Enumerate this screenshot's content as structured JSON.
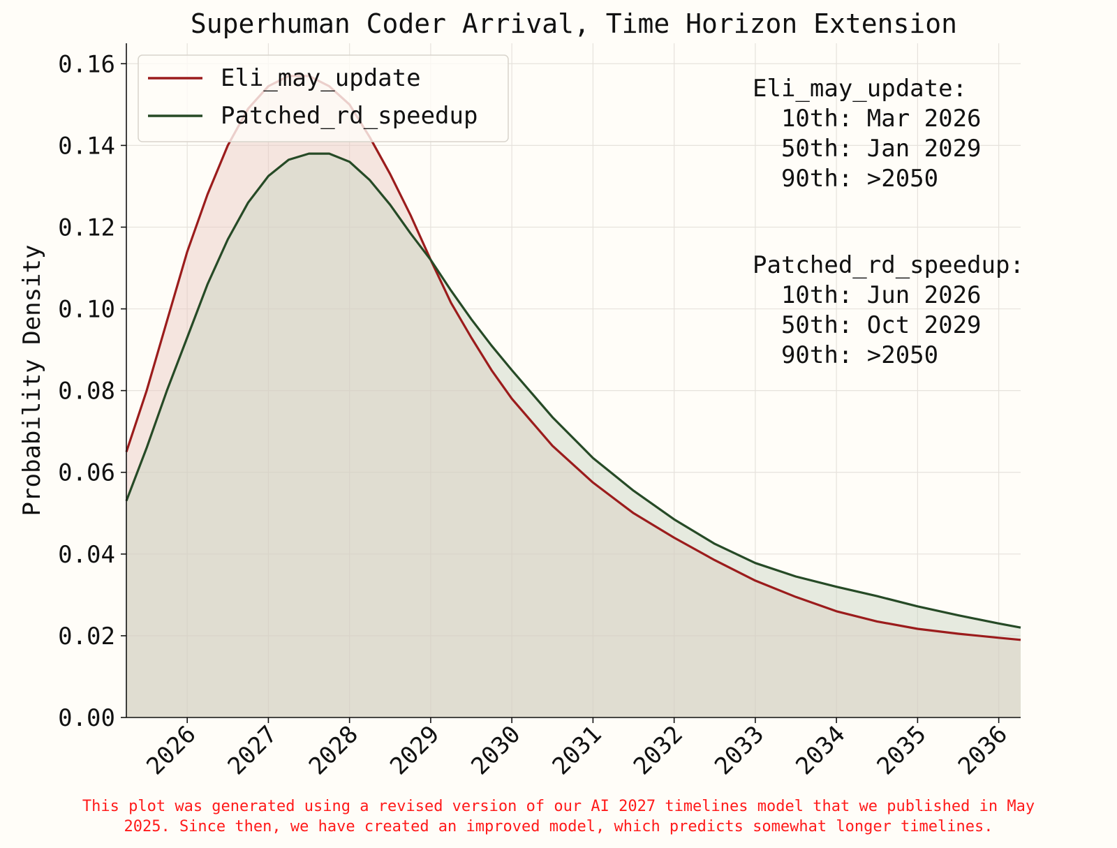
{
  "chart_data": {
    "type": "area",
    "title": "Superhuman Coder Arrival, Time Horizon Extension",
    "xlabel": "",
    "ylabel": "Probability Density",
    "xlim": [
      2025.25,
      2036.27
    ],
    "ylim": [
      0,
      0.165
    ],
    "x_ticks": [
      2026,
      2027,
      2028,
      2029,
      2030,
      2031,
      2032,
      2033,
      2034,
      2035,
      2036
    ],
    "x_tick_labels": [
      "2026",
      "2027",
      "2028",
      "2029",
      "2030",
      "2031",
      "2032",
      "2033",
      "2034",
      "2035",
      "2036"
    ],
    "y_ticks": [
      0,
      0.02,
      0.04,
      0.06,
      0.08,
      0.1,
      0.12,
      0.14,
      0.16
    ],
    "y_tick_labels": [
      "0.00",
      "0.02",
      "0.04",
      "0.06",
      "0.08",
      "0.10",
      "0.12",
      "0.14",
      "0.16"
    ],
    "grid": true,
    "legend_position": "top-left",
    "series": [
      {
        "name": "Eli_may_update",
        "color": "#9b1c1c",
        "fill": "#e8c8c0",
        "x": [
          2025.25,
          2025.5,
          2025.75,
          2026.0,
          2026.25,
          2026.5,
          2026.75,
          2027.0,
          2027.25,
          2027.5,
          2027.75,
          2028.0,
          2028.25,
          2028.5,
          2028.75,
          2029.0,
          2029.25,
          2029.5,
          2029.75,
          2030.0,
          2030.5,
          2031.0,
          2031.5,
          2032.0,
          2032.5,
          2033.0,
          2033.5,
          2034.0,
          2034.5,
          2035.0,
          2035.5,
          2036.0,
          2036.27
        ],
        "y": [
          0.065,
          0.08,
          0.097,
          0.114,
          0.128,
          0.14,
          0.149,
          0.1545,
          0.157,
          0.157,
          0.1545,
          0.15,
          0.142,
          0.133,
          0.123,
          0.112,
          0.1015,
          0.093,
          0.085,
          0.078,
          0.0665,
          0.0575,
          0.05,
          0.044,
          0.0385,
          0.0335,
          0.0295,
          0.026,
          0.0235,
          0.0217,
          0.0205,
          0.0195,
          0.019
        ]
      },
      {
        "name": "Patched_rd_speedup",
        "color": "#264a26",
        "fill": "#c8d2c0",
        "x": [
          2025.25,
          2025.5,
          2025.75,
          2026.0,
          2026.25,
          2026.5,
          2026.75,
          2027.0,
          2027.25,
          2027.5,
          2027.75,
          2028.0,
          2028.25,
          2028.5,
          2028.75,
          2029.0,
          2029.25,
          2029.5,
          2029.75,
          2030.0,
          2030.5,
          2031.0,
          2031.5,
          2032.0,
          2032.5,
          2033.0,
          2033.5,
          2034.0,
          2034.5,
          2035.0,
          2035.5,
          2036.0,
          2036.27
        ],
        "y": [
          0.053,
          0.066,
          0.08,
          0.093,
          0.106,
          0.117,
          0.126,
          0.1325,
          0.1365,
          0.138,
          0.138,
          0.136,
          0.1315,
          0.1255,
          0.1185,
          0.112,
          0.1045,
          0.0975,
          0.091,
          0.085,
          0.0735,
          0.0635,
          0.0555,
          0.0485,
          0.0425,
          0.0378,
          0.0345,
          0.032,
          0.0297,
          0.0272,
          0.025,
          0.023,
          0.022
        ]
      }
    ],
    "annotations": [
      {
        "series": "Eli_may_update",
        "lines": [
          "Eli_may_update:",
          "  10th: Mar 2026",
          "  50th: Jan 2029",
          "  90th: >2050"
        ]
      },
      {
        "series": "Patched_rd_speedup",
        "lines": [
          "Patched_rd_speedup:",
          "  10th: Jun 2026",
          "  50th: Oct 2029",
          "  90th: >2050"
        ]
      }
    ]
  },
  "footnote": {
    "line1": "This plot was generated using a revised version of our AI 2027 timelines model that we published in May",
    "line2": "2025. Since then, we have created an improved model, which predicts somewhat longer timelines."
  }
}
